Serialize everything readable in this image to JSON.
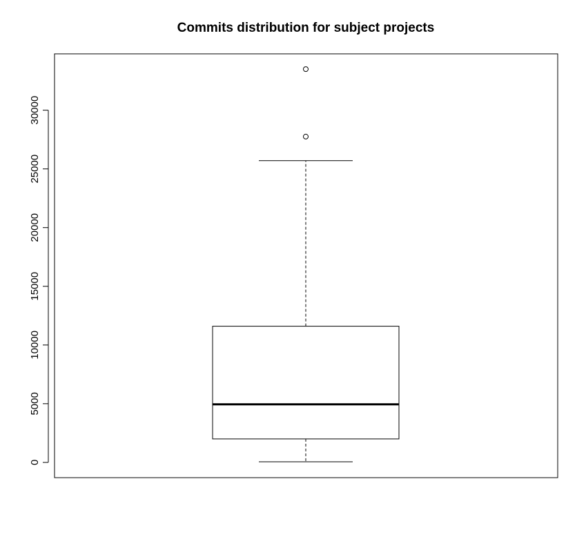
{
  "chart_data": {
    "type": "boxplot",
    "title": "Commits distribution for subject projects",
    "xlabel": "",
    "ylabel": "",
    "ylim": [
      -1300,
      34800
    ],
    "yticks": [
      0,
      5000,
      10000,
      15000,
      20000,
      25000,
      30000
    ],
    "ytick_labels": [
      "0",
      "5000",
      "10000",
      "15000",
      "20000",
      "25000",
      "30000"
    ],
    "grid": false,
    "box": {
      "whisker_low": 50,
      "q1": 2000,
      "median": 4950,
      "q3": 11600,
      "whisker_high": 25700,
      "outliers": [
        27750,
        33500
      ]
    },
    "colors": {
      "line": "#000000",
      "background": "#ffffff"
    }
  }
}
